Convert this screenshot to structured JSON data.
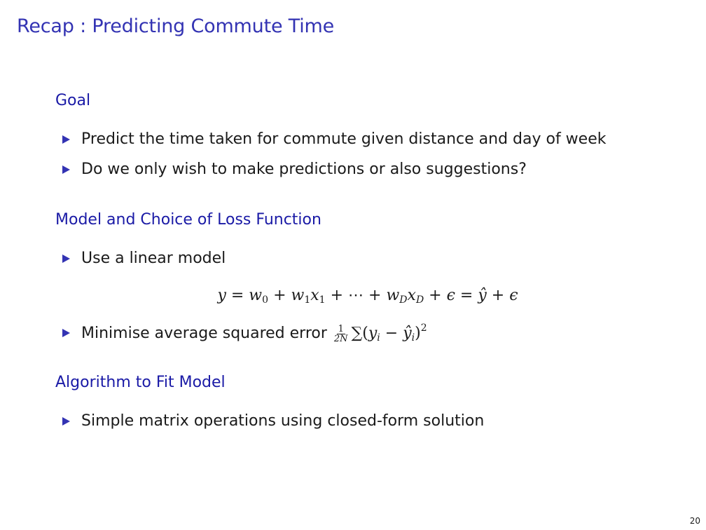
{
  "slide": {
    "title": "Recap : Predicting Commute Time",
    "page_number": "20"
  },
  "sections": {
    "goal": {
      "title": "Goal",
      "items": [
        "Predict the time taken for commute given distance and day of week",
        "Do we only wish to make predictions or also suggestions?"
      ]
    },
    "model": {
      "title": "Model and Choice of Loss Function",
      "items": [
        "Use a linear model",
        "Minimise average squared error"
      ],
      "equation": "y = w₀ + w₁x₁ + ⋯ + w_D x_D + ϵ = ŷ + ϵ",
      "loss": "1/(2N) ∑(yᵢ − ŷᵢ)²"
    },
    "algorithm": {
      "title": "Algorithm to Fit Model",
      "items": [
        "Simple matrix operations using closed-form solution"
      ]
    }
  },
  "colors": {
    "title": "#3333b3",
    "block_title": "#1a1aa6",
    "bullet": "#3333b3",
    "text": "#1a1a1a"
  },
  "icons": {
    "bullet": "triangle-right-icon"
  }
}
